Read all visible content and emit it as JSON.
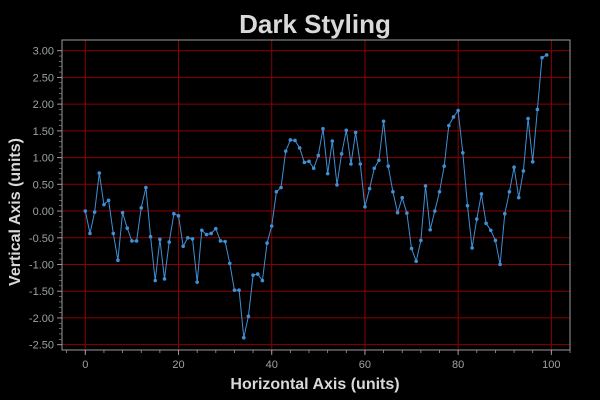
{
  "chart_data": {
    "type": "line",
    "title": "Dark Styling",
    "xlabel": "Horizontal Axis (units)",
    "ylabel": "Vertical Axis (units)",
    "xlim": [
      -5,
      104
    ],
    "ylim": [
      -2.6,
      3.2
    ],
    "grid": true,
    "x_ticks": [
      0,
      20,
      40,
      60,
      80,
      100
    ],
    "y_ticks": [
      3.0,
      2.5,
      2.0,
      1.5,
      1.0,
      0.5,
      0.0,
      -0.5,
      -1.0,
      -1.5,
      -2.0,
      -2.5
    ],
    "x_tick_labels": [
      "0",
      "20",
      "40",
      "60",
      "80",
      "100"
    ],
    "y_tick_labels": [
      "3.00",
      "2.50",
      "2.00",
      "1.50",
      "1.00",
      "0.50",
      "0.00",
      "-0.50",
      "-1.00",
      "-1.50",
      "-2.00",
      "-2.50"
    ],
    "colors": {
      "background": "#000000",
      "grid": "#8b0000",
      "series": "#3f8fd4",
      "frame": "#9a9a9a",
      "text": "#d9d9d9",
      "tick_text": "#a0a0a0"
    },
    "series": [
      {
        "x": [
          0,
          1,
          2,
          3,
          4,
          5,
          6,
          7,
          8,
          9,
          10,
          11,
          12,
          13,
          14,
          15,
          16,
          17,
          18,
          19,
          20,
          21,
          22,
          23,
          24,
          25,
          26,
          27,
          28,
          29,
          30,
          31,
          32,
          33,
          34,
          35,
          36,
          37,
          38,
          39,
          40,
          41,
          42,
          43,
          44,
          45,
          46,
          47,
          48,
          49,
          50,
          51,
          52,
          53,
          54,
          55,
          56,
          57,
          58,
          59,
          60,
          61,
          62,
          63,
          64,
          65,
          66,
          67,
          68,
          69,
          70,
          71,
          72,
          73,
          74,
          75,
          76,
          77,
          78,
          79,
          80,
          81,
          82,
          83,
          84,
          85,
          86,
          87,
          88,
          89,
          90,
          91,
          92,
          93,
          94,
          95,
          96,
          97,
          98,
          99
        ],
        "values": [
          0.0,
          -0.42,
          -0.02,
          0.71,
          0.12,
          0.2,
          -0.42,
          -0.92,
          -0.03,
          -0.32,
          -0.56,
          -0.56,
          0.06,
          0.44,
          -0.48,
          -1.3,
          -0.53,
          -1.27,
          -0.58,
          -0.05,
          -0.09,
          -0.66,
          -0.5,
          -0.52,
          -1.33,
          -0.36,
          -0.44,
          -0.42,
          -0.33,
          -0.56,
          -0.57,
          -0.98,
          -1.48,
          -1.48,
          -2.37,
          -1.97,
          -1.2,
          -1.18,
          -1.3,
          -0.6,
          -0.28,
          0.36,
          0.44,
          1.12,
          1.33,
          1.32,
          1.18,
          0.91,
          0.93,
          0.8,
          1.04,
          1.54,
          0.7,
          1.31,
          0.49,
          1.07,
          1.51,
          0.88,
          1.47,
          0.88,
          0.08,
          0.42,
          0.8,
          0.95,
          1.68,
          0.84,
          0.36,
          -0.03,
          0.25,
          -0.04,
          -0.7,
          -0.94,
          -0.55,
          0.47,
          -0.35,
          0.0,
          0.36,
          0.84,
          1.6,
          1.76,
          1.88,
          1.09,
          0.1,
          -0.69,
          -0.15,
          0.32,
          -0.23,
          -0.36,
          -0.55,
          -1.0,
          -0.05,
          0.36,
          0.82,
          0.25,
          0.75,
          1.73,
          0.92,
          1.9,
          2.87,
          2.92
        ]
      }
    ]
  }
}
